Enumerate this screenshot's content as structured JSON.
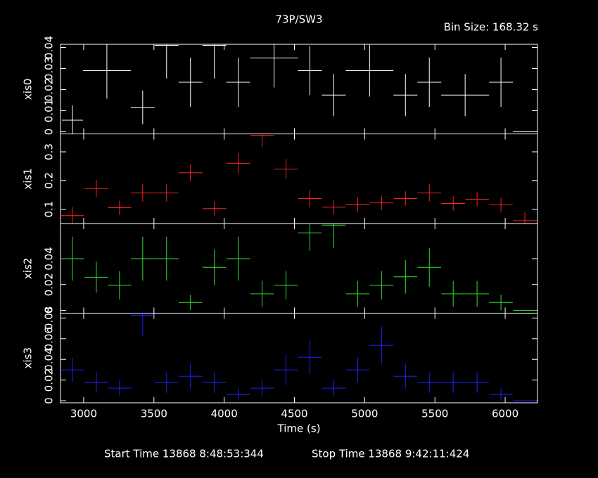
{
  "title": "73P/SW3",
  "bin_size": "Bin Size: 168.32 s",
  "footer": {
    "start": "Start Time 13868  8:48:53:344",
    "stop": "Stop Time 13868  9:42:11:424"
  },
  "chart_data": [
    {
      "type": "errorcross",
      "ylabel": "xis0",
      "color": "#ffffff",
      "xlim": [
        2835,
        6230
      ],
      "ylim": [
        -0.001,
        0.0415
      ],
      "yticks": [
        0,
        0.01,
        0.02,
        0.03,
        0.04
      ],
      "x": [
        2920,
        3165,
        3420,
        3590,
        3760,
        3930,
        4100,
        4355,
        4610,
        4780,
        5035,
        5290,
        5460,
        5715,
        5970,
        6140
      ],
      "xerr": [
        75,
        170,
        85,
        85,
        85,
        85,
        85,
        170,
        85,
        85,
        170,
        85,
        85,
        170,
        85,
        85
      ],
      "values": [
        0.0055,
        0.029,
        0.0116,
        0.041,
        0.0235,
        0.041,
        0.0235,
        0.035,
        0.029,
        0.0174,
        0.029,
        0.0174,
        0.0235,
        0.0174,
        0.0235,
        0
      ],
      "yerr": [
        0.007,
        0.0133,
        0.008,
        0.0157,
        0.0117,
        0.0157,
        0.0117,
        0.014,
        0.0116,
        0.01,
        0.0123,
        0.01,
        0.0117,
        0.01,
        0.0117,
        0
      ]
    },
    {
      "type": "errorcross",
      "ylabel": "xis1",
      "color": "#ff2020",
      "xlim": [
        2835,
        6230
      ],
      "ylim": [
        0.05,
        0.3625
      ],
      "yticks": [
        0.1,
        0.2,
        0.3
      ],
      "x": [
        2920,
        3090,
        3255,
        3420,
        3590,
        3760,
        3930,
        4100,
        4270,
        4440,
        4610,
        4780,
        4950,
        5120,
        5290,
        5460,
        5630,
        5800,
        5970,
        6140
      ],
      "xerr": [
        84,
        84,
        84,
        84,
        84,
        84,
        84,
        84,
        84,
        84,
        84,
        84,
        84,
        84,
        84,
        84,
        84,
        84,
        84,
        84
      ],
      "values": [
        0.0775,
        0.172,
        0.105,
        0.157,
        0.157,
        0.227,
        0.102,
        0.26,
        0.357,
        0.24,
        0.137,
        0.107,
        0.117,
        0.122,
        0.137,
        0.157,
        0.12,
        0.135,
        0.115,
        0.06
      ],
      "yerr": [
        0.03,
        0.03,
        0.025,
        0.03,
        0.03,
        0.03,
        0.025,
        0.035,
        0.04,
        0.035,
        0.03,
        0.025,
        0.025,
        0.025,
        0.025,
        0.03,
        0.025,
        0.025,
        0.025,
        0.03
      ]
    },
    {
      "type": "errorcross",
      "ylabel": "xis2",
      "color": "#30e030",
      "xlim": [
        2835,
        6230
      ],
      "ylim": [
        -0.0022,
        0.0672
      ],
      "yticks": [
        0,
        0.02,
        0.04
      ],
      "x": [
        2920,
        3090,
        3255,
        3420,
        3590,
        3760,
        3930,
        4100,
        4270,
        4440,
        4610,
        4780,
        4950,
        5120,
        5290,
        5460,
        5630,
        5800,
        5970,
        6140
      ],
      "xerr": [
        84,
        84,
        84,
        84,
        84,
        84,
        84,
        84,
        84,
        84,
        84,
        84,
        84,
        84,
        84,
        84,
        84,
        84,
        84,
        84
      ],
      "values": [
        0.04,
        0.0256,
        0.0194,
        0.04,
        0.04,
        0.0061,
        0.0333,
        0.04,
        0.0128,
        0.0194,
        0.06,
        0.066,
        0.0128,
        0.0194,
        0.026,
        0.0333,
        0.0128,
        0.0128,
        0.0061,
        0
      ],
      "yerr": [
        0.017,
        0.012,
        0.011,
        0.017,
        0.017,
        0.006,
        0.014,
        0.017,
        0.01,
        0.011,
        0.0139,
        0.018,
        0.01,
        0.011,
        0.013,
        0.015,
        0.01,
        0.01,
        0.006,
        0
      ]
    },
    {
      "type": "errorcross",
      "ylabel": "xis3",
      "xlabel": "Time (s)",
      "color": "#2020ff",
      "xlim": [
        2835,
        6230
      ],
      "ylim": [
        -0.002,
        0.0847
      ],
      "yticks": [
        0,
        0.02,
        0.04,
        0.06,
        0.08
      ],
      "xticks": [
        3000,
        3500,
        4000,
        4500,
        5000,
        5500,
        6000
      ],
      "x": [
        2920,
        3090,
        3255,
        3420,
        3590,
        3760,
        3930,
        4100,
        4270,
        4440,
        4610,
        4780,
        4950,
        5120,
        5290,
        5460,
        5630,
        5800,
        5970,
        6140
      ],
      "xerr": [
        84,
        84,
        84,
        84,
        84,
        84,
        84,
        84,
        84,
        84,
        84,
        84,
        84,
        84,
        84,
        84,
        84,
        84,
        84,
        84
      ],
      "values": [
        0.0298,
        0.0176,
        0.0122,
        0.0827,
        0.0176,
        0.0237,
        0.0176,
        0.0061,
        0.0122,
        0.0298,
        0.042,
        0.0122,
        0.0298,
        0.0536,
        0.0237,
        0.0176,
        0.0176,
        0.0176,
        0.0061,
        0
      ],
      "yerr": [
        0.012,
        0.01,
        0.008,
        0.02,
        0.01,
        0.012,
        0.01,
        0.006,
        0.008,
        0.015,
        0.016,
        0.008,
        0.012,
        0.018,
        0.012,
        0.01,
        0.01,
        0.01,
        0.006,
        0
      ]
    }
  ]
}
